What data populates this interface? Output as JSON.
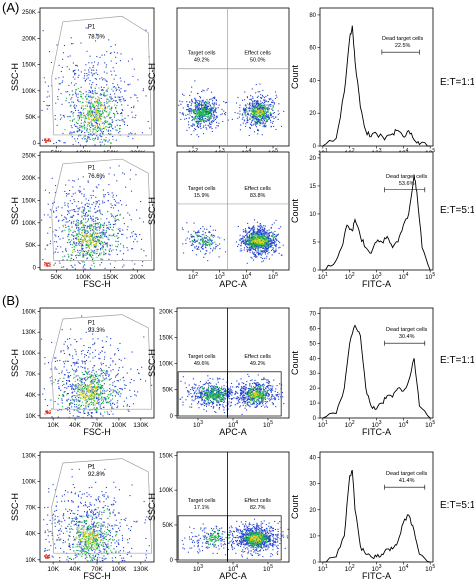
{
  "panels": [
    {
      "label": "(A)"
    },
    {
      "label": "(B)"
    }
  ],
  "ratios": [
    "E:T=1:1",
    "E:T=5:1",
    "E:T=1:1",
    "E:T=5:1"
  ],
  "colors": {
    "density_low": "#2040d0",
    "density_mid": "#20c040",
    "density_high": "#e8d020",
    "density_peak": "#e03020",
    "gate": "#a0a0a0",
    "line": "#000000"
  },
  "chart_data": [
    {
      "type": "scatter",
      "panel": "A",
      "row": 1,
      "col": 1,
      "xlabel": "FSC-H",
      "ylabel": "SSC-H",
      "xticks": [
        "50K",
        "100K",
        "150K",
        "200K"
      ],
      "yticks": [
        "0",
        "50K",
        "100K",
        "150K",
        "200K",
        "250K"
      ],
      "gate": {
        "name": "P1",
        "percent": "78.5%"
      },
      "xlim": [
        0,
        210000
      ],
      "ylim": [
        0,
        260000
      ],
      "cluster": {
        "x": 100000,
        "y": 60000
      }
    },
    {
      "type": "scatter",
      "panel": "A",
      "row": 1,
      "col": 2,
      "xlabel": "APC-A",
      "ylabel": "SSC-H",
      "xticks": [
        "10^2",
        "10^3",
        "10^4",
        "10^5"
      ],
      "quadrants": [
        {
          "name": "Target cells",
          "percent": "49.2%"
        },
        {
          "name": "Effect cells",
          "percent": "50.0%"
        }
      ],
      "cluster_left": {
        "x": 2.8
      },
      "cluster_right": {
        "x": 4.2
      }
    },
    {
      "type": "line",
      "panel": "A",
      "row": 1,
      "col": 3,
      "xlabel": "FITC-A",
      "ylabel": "Count",
      "xticks": [
        "10^1",
        "10^2",
        "10^3",
        "10^4",
        "10^5"
      ],
      "yticks": [
        "0",
        "20",
        "40",
        "60",
        "80"
      ],
      "ylim": [
        0,
        85
      ],
      "marker": {
        "name": "Dead target cells",
        "percent": "22.5%",
        "range": [
          3.2,
          4.6
        ]
      },
      "x": [
        1.0,
        1.5,
        1.8,
        2.0,
        2.1,
        2.2,
        2.4,
        2.6,
        2.8,
        3.0,
        3.3,
        3.6,
        3.8,
        4.0,
        4.2,
        4.4,
        4.6,
        5.0
      ],
      "y": [
        0,
        5,
        35,
        70,
        78,
        55,
        25,
        10,
        6,
        8,
        4,
        8,
        10,
        6,
        10,
        4,
        1,
        0
      ]
    },
    {
      "type": "scatter",
      "panel": "A",
      "row": 2,
      "col": 1,
      "xlabel": "FSC-H",
      "ylabel": "SSC-H",
      "xticks": [
        "50K",
        "100K",
        "150K",
        "200K"
      ],
      "yticks": [
        "0",
        "50K",
        "100K",
        "150K",
        "200K",
        "250K"
      ],
      "gate": {
        "name": "P1",
        "percent": "76.6%"
      },
      "xlim": [
        0,
        210000
      ],
      "ylim": [
        0,
        260000
      ],
      "cluster": {
        "x": 90000,
        "y": 70000
      }
    },
    {
      "type": "scatter",
      "panel": "A",
      "row": 2,
      "col": 2,
      "xlabel": "APC-A",
      "ylabel": "SSC-H",
      "xticks": [
        "10^2",
        "10^3",
        "10^4",
        "10^5"
      ],
      "quadrants": [
        {
          "name": "Target cells",
          "percent": "15.9%"
        },
        {
          "name": "Effect cells",
          "percent": "83.8%"
        }
      ],
      "cluster_left": {
        "x": 2.6
      },
      "cluster_right": {
        "x": 4.2
      }
    },
    {
      "type": "line",
      "panel": "A",
      "row": 2,
      "col": 3,
      "xlabel": "FITC-A",
      "ylabel": "Count",
      "xticks": [
        "10^1",
        "10^2",
        "10^3",
        "10^4",
        "10^5"
      ],
      "yticks": [
        "0",
        "5",
        "10",
        "15",
        "20"
      ],
      "ylim": [
        0,
        20
      ],
      "marker": {
        "name": "Dead target cells",
        "percent": "53.6%",
        "range": [
          3.3,
          4.8
        ]
      },
      "x": [
        1.0,
        1.4,
        1.7,
        1.9,
        2.1,
        2.2,
        2.4,
        2.6,
        2.8,
        3.0,
        3.2,
        3.4,
        3.6,
        3.8,
        4.0,
        4.2,
        4.4,
        4.5,
        4.7,
        5.0
      ],
      "y": [
        0,
        1,
        4,
        8,
        7,
        9,
        6,
        4,
        3,
        5,
        5,
        6,
        4,
        5,
        8,
        10,
        17,
        14,
        4,
        0
      ]
    },
    {
      "type": "scatter",
      "panel": "B",
      "row": 1,
      "col": 1,
      "xlabel": "FSC-H",
      "ylabel": "SSC-H",
      "xticks": [
        "10K",
        "40K",
        "70K",
        "100K",
        "130K"
      ],
      "yticks": [
        "10K",
        "40K",
        "70K",
        "100K",
        "130K",
        "160K"
      ],
      "gate": {
        "name": "P1",
        "percent": "93.3%"
      },
      "xlim": [
        0,
        140000
      ],
      "ylim": [
        0,
        170000
      ],
      "cluster": {
        "x": 60000,
        "y": 40000
      }
    },
    {
      "type": "scatter",
      "panel": "B",
      "row": 1,
      "col": 2,
      "xlabel": "APC-A",
      "ylabel": "SSC-H",
      "xticks": [
        "10^3",
        "10^4",
        "10^5"
      ],
      "yticks": [
        "0",
        "50K",
        "100K",
        "150K",
        "200K"
      ],
      "quadrants": [
        {
          "name": "Target cells",
          "percent": "49.6%"
        },
        {
          "name": "Effect cells",
          "percent": "49.2%"
        }
      ],
      "cluster_left": {
        "x": 3.5
      },
      "cluster_right": {
        "x": 4.4
      }
    },
    {
      "type": "line",
      "panel": "B",
      "row": 1,
      "col": 3,
      "xlabel": "FITC-A",
      "ylabel": "Count",
      "xticks": [
        "10^1",
        "10^2",
        "10^3",
        "10^4",
        "10^5"
      ],
      "yticks": [
        "0",
        "10",
        "20",
        "30",
        "40",
        "50",
        "60",
        "70"
      ],
      "ylim": [
        0,
        70
      ],
      "marker": {
        "name": "Dead target cells",
        "percent": "30.4%",
        "range": [
          3.3,
          4.8
        ]
      },
      "x": [
        1.0,
        1.5,
        1.8,
        2.0,
        2.2,
        2.4,
        2.6,
        2.8,
        3.0,
        3.2,
        3.4,
        3.6,
        3.8,
        4.0,
        4.2,
        4.4,
        4.6,
        5.0
      ],
      "y": [
        0,
        3,
        20,
        50,
        62,
        55,
        20,
        8,
        6,
        10,
        15,
        14,
        20,
        18,
        25,
        40,
        8,
        0
      ]
    },
    {
      "type": "scatter",
      "panel": "B",
      "row": 2,
      "col": 1,
      "xlabel": "FSC-H",
      "ylabel": "SSC-H",
      "xticks": [
        "10K",
        "40K",
        "70K",
        "100K",
        "130K"
      ],
      "yticks": [
        "10K",
        "40K",
        "70K",
        "100K",
        "130K"
      ],
      "gate": {
        "name": "P1",
        "percent": "92.8%"
      },
      "xlim": [
        0,
        140000
      ],
      "ylim": [
        0,
        140000
      ],
      "cluster": {
        "x": 60000,
        "y": 30000
      }
    },
    {
      "type": "scatter",
      "panel": "B",
      "row": 2,
      "col": 2,
      "xlabel": "APC-A",
      "ylabel": "SSC-H",
      "xticks": [
        "10^3",
        "10^4",
        "10^5"
      ],
      "yticks": [
        "0",
        "50K",
        "100K",
        "150K"
      ],
      "quadrants": [
        {
          "name": "Target cells",
          "percent": "17.1%"
        },
        {
          "name": "Effect cells",
          "percent": "82.7%"
        }
      ],
      "cluster_left": {
        "x": 3.5
      },
      "cluster_right": {
        "x": 4.4
      }
    },
    {
      "type": "line",
      "panel": "B",
      "row": 2,
      "col": 3,
      "xlabel": "FITC-A",
      "ylabel": "Count",
      "xticks": [
        "10^1",
        "10^2",
        "10^3",
        "10^4",
        "10^5"
      ],
      "yticks": [
        "0",
        "10",
        "20",
        "30",
        "40"
      ],
      "ylim": [
        0,
        40
      ],
      "marker": {
        "name": "Dead target cells",
        "percent": "41.4%",
        "range": [
          3.3,
          4.8
        ]
      },
      "x": [
        1.0,
        1.5,
        1.8,
        2.0,
        2.1,
        2.2,
        2.4,
        2.6,
        2.8,
        3.0,
        3.2,
        3.4,
        3.6,
        3.8,
        4.0,
        4.2,
        4.4,
        4.6,
        5.0
      ],
      "y": [
        0,
        2,
        10,
        33,
        35,
        20,
        6,
        3,
        2,
        2,
        3,
        5,
        5,
        8,
        15,
        18,
        12,
        3,
        0
      ]
    }
  ]
}
